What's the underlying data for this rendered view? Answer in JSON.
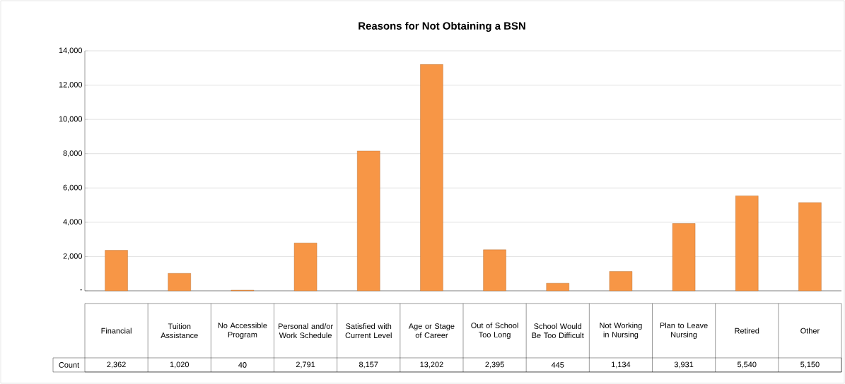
{
  "chart_data": {
    "type": "bar",
    "title": "Reasons for Not Obtaining a BSN",
    "categories": [
      "Financial",
      "Tuition Assistance",
      "No Accessible Program",
      "Personal and/or Work Schedule",
      "Satisfied with Current Level",
      "Age or Stage of Career",
      "Out of School Too Long",
      "School Would Be Too Difficult",
      "Not Working in Nursing",
      "Plan to Leave Nursing",
      "Retired",
      "Other"
    ],
    "series": [
      {
        "name": "Count",
        "color": "#f79646",
        "values": [
          2362,
          1020,
          40,
          2791,
          8157,
          13202,
          2395,
          445,
          1134,
          3931,
          5540,
          5150
        ],
        "value_labels": [
          "2,362",
          "1,020",
          "40",
          "2,791",
          "8,157",
          "13,202",
          "2,395",
          "445",
          "1,134",
          "3,931",
          "5,540",
          "5,150"
        ]
      }
    ],
    "ylim": [
      0,
      14000
    ],
    "yticks": [
      {
        "value": 0,
        "label": "-"
      },
      {
        "value": 2000,
        "label": "2,000"
      },
      {
        "value": 4000,
        "label": "4,000"
      },
      {
        "value": 6000,
        "label": "6,000"
      },
      {
        "value": 8000,
        "label": "8,000"
      },
      {
        "value": 10000,
        "label": "10,000"
      },
      {
        "value": 12000,
        "label": "12,000"
      },
      {
        "value": 14000,
        "label": "14,000"
      }
    ],
    "grid": true
  }
}
